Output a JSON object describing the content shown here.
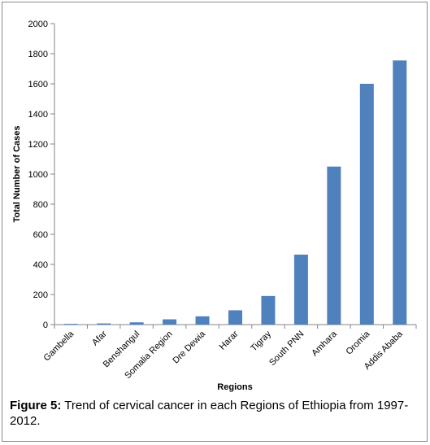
{
  "chart_data": {
    "type": "bar",
    "categories": [
      "Gambella",
      "Afar",
      "Benshangul",
      "Somalia Region",
      "Dre Dewia",
      "Harar",
      "Tigray",
      "South PNN",
      "Amhara",
      "Oromia",
      "Addis Ababa"
    ],
    "values": [
      5,
      8,
      15,
      35,
      55,
      95,
      190,
      465,
      1050,
      1600,
      1755
    ],
    "xlabel": "Regions",
    "ylabel": "Total Number of Cases",
    "ylim": [
      0,
      2000
    ],
    "yticks": [
      0,
      200,
      400,
      600,
      800,
      1000,
      1200,
      1400,
      1600,
      1800,
      2000
    ],
    "grid": false,
    "legend": "none",
    "bar_color": "#4f81bd"
  },
  "caption": {
    "label": "Figure 5:",
    "text": " Trend of cervical cancer in each Regions of Ethiopia from 1997-2012."
  }
}
